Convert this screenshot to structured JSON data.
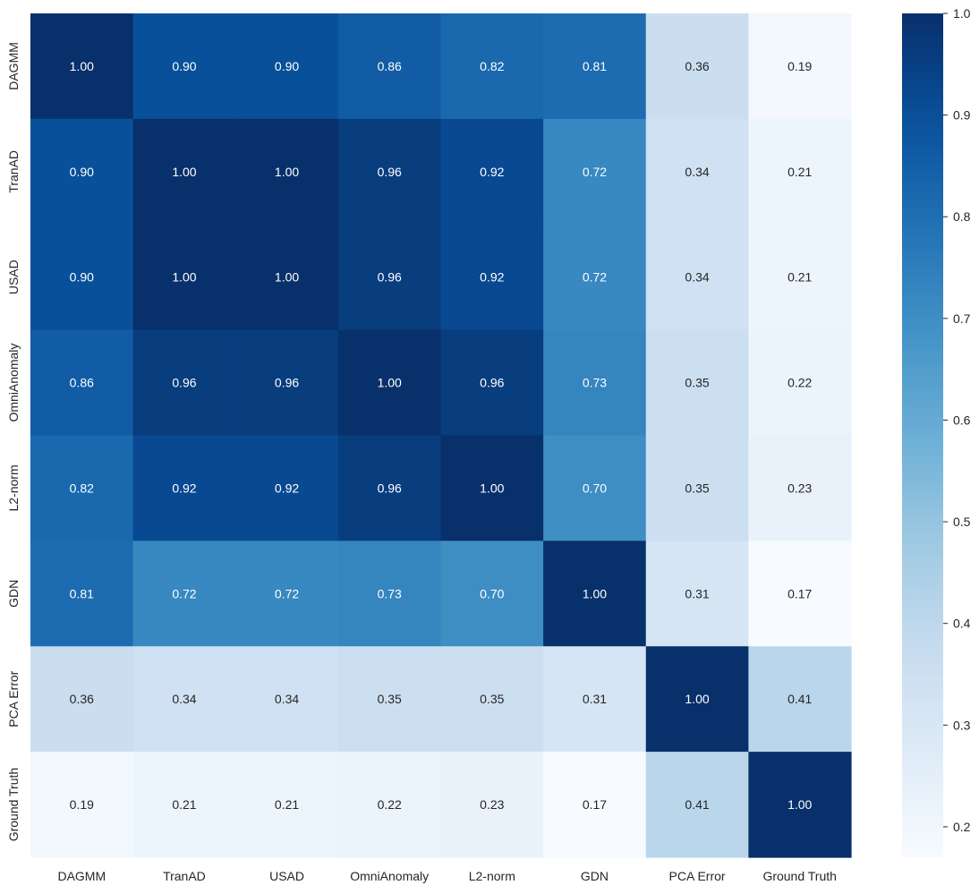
{
  "chart_data": {
    "type": "heatmap",
    "title": "",
    "xlabel": "",
    "ylabel": "",
    "colormap": "Blues",
    "value_format": "0.00",
    "row_labels": [
      "DAGMM",
      "TranAD",
      "USAD",
      "OmniAnomaly",
      "L2-norm",
      "GDN",
      "PCA Error",
      "Ground Truth"
    ],
    "col_labels": [
      "DAGMM",
      "TranAD",
      "USAD",
      "OmniAnomaly",
      "L2-norm",
      "GDN",
      "PCA Error",
      "Ground Truth"
    ],
    "values": [
      [
        1.0,
        0.9,
        0.9,
        0.86,
        0.82,
        0.81,
        0.36,
        0.19
      ],
      [
        0.9,
        1.0,
        1.0,
        0.96,
        0.92,
        0.72,
        0.34,
        0.21
      ],
      [
        0.9,
        1.0,
        1.0,
        0.96,
        0.92,
        0.72,
        0.34,
        0.21
      ],
      [
        0.86,
        0.96,
        0.96,
        1.0,
        0.96,
        0.73,
        0.35,
        0.22
      ],
      [
        0.82,
        0.92,
        0.92,
        0.96,
        1.0,
        0.7,
        0.35,
        0.23
      ],
      [
        0.81,
        0.72,
        0.72,
        0.73,
        0.7,
        1.0,
        0.31,
        0.17
      ],
      [
        0.36,
        0.34,
        0.34,
        0.35,
        0.35,
        0.31,
        1.0,
        0.41
      ],
      [
        0.19,
        0.21,
        0.21,
        0.22,
        0.23,
        0.17,
        0.41,
        1.0
      ]
    ],
    "colorbar": {
      "range": [
        0.17,
        1.0
      ],
      "ticks": [
        0.2,
        0.3,
        0.4,
        0.5,
        0.6,
        0.7,
        0.8,
        0.9,
        1.0
      ],
      "tick_labels": [
        "0.2",
        "0.3",
        "0.4",
        "0.5",
        "0.6",
        "0.7",
        "0.8",
        "0.9",
        "1.0"
      ]
    },
    "text_colors": {
      "dark_bg": "#ffffff",
      "light_bg": "#262626"
    }
  }
}
